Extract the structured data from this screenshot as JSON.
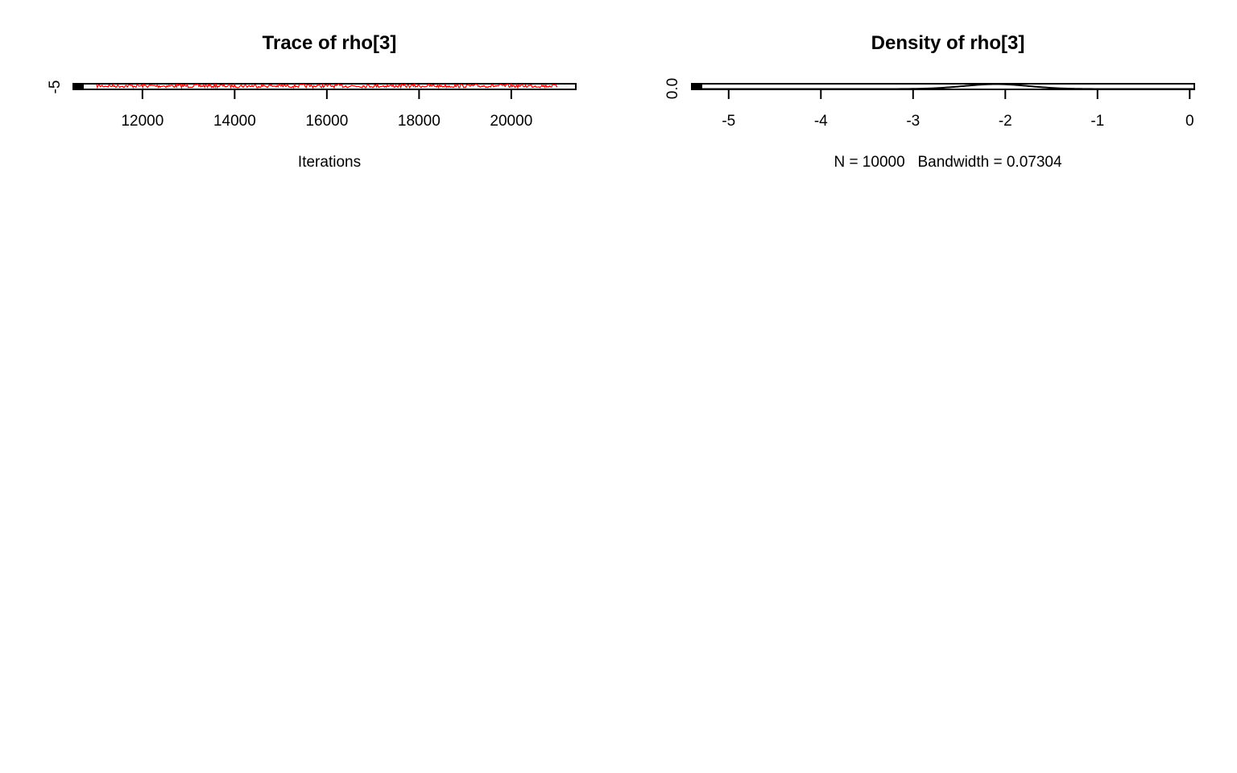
{
  "chart_data": [
    {
      "type": "line",
      "title": "Trace of rho[3]",
      "xlabel": "Iterations",
      "ylabel": "",
      "x_ticks": [
        "12000",
        "14000",
        "16000",
        "18000",
        "20000"
      ],
      "y_ticks": [
        "-5"
      ],
      "xlim": [
        10500,
        21400
      ],
      "x_range": [
        11001,
        21000
      ],
      "line_color": "#ff0000",
      "frame_color": "#000000"
    },
    {
      "type": "line",
      "title": "Density of rho[3]",
      "xlabel": "N = 10000   Bandwidth = 0.07304",
      "ylabel": "",
      "x_ticks": [
        "-5",
        "-4",
        "-3",
        "-2",
        "-1",
        "0"
      ],
      "y_ticks": [
        "0.0"
      ],
      "xlim": [
        -5.4,
        0.05
      ],
      "density_mode": -2.1,
      "density_sd": 0.35,
      "line_color": "#000000"
    }
  ]
}
